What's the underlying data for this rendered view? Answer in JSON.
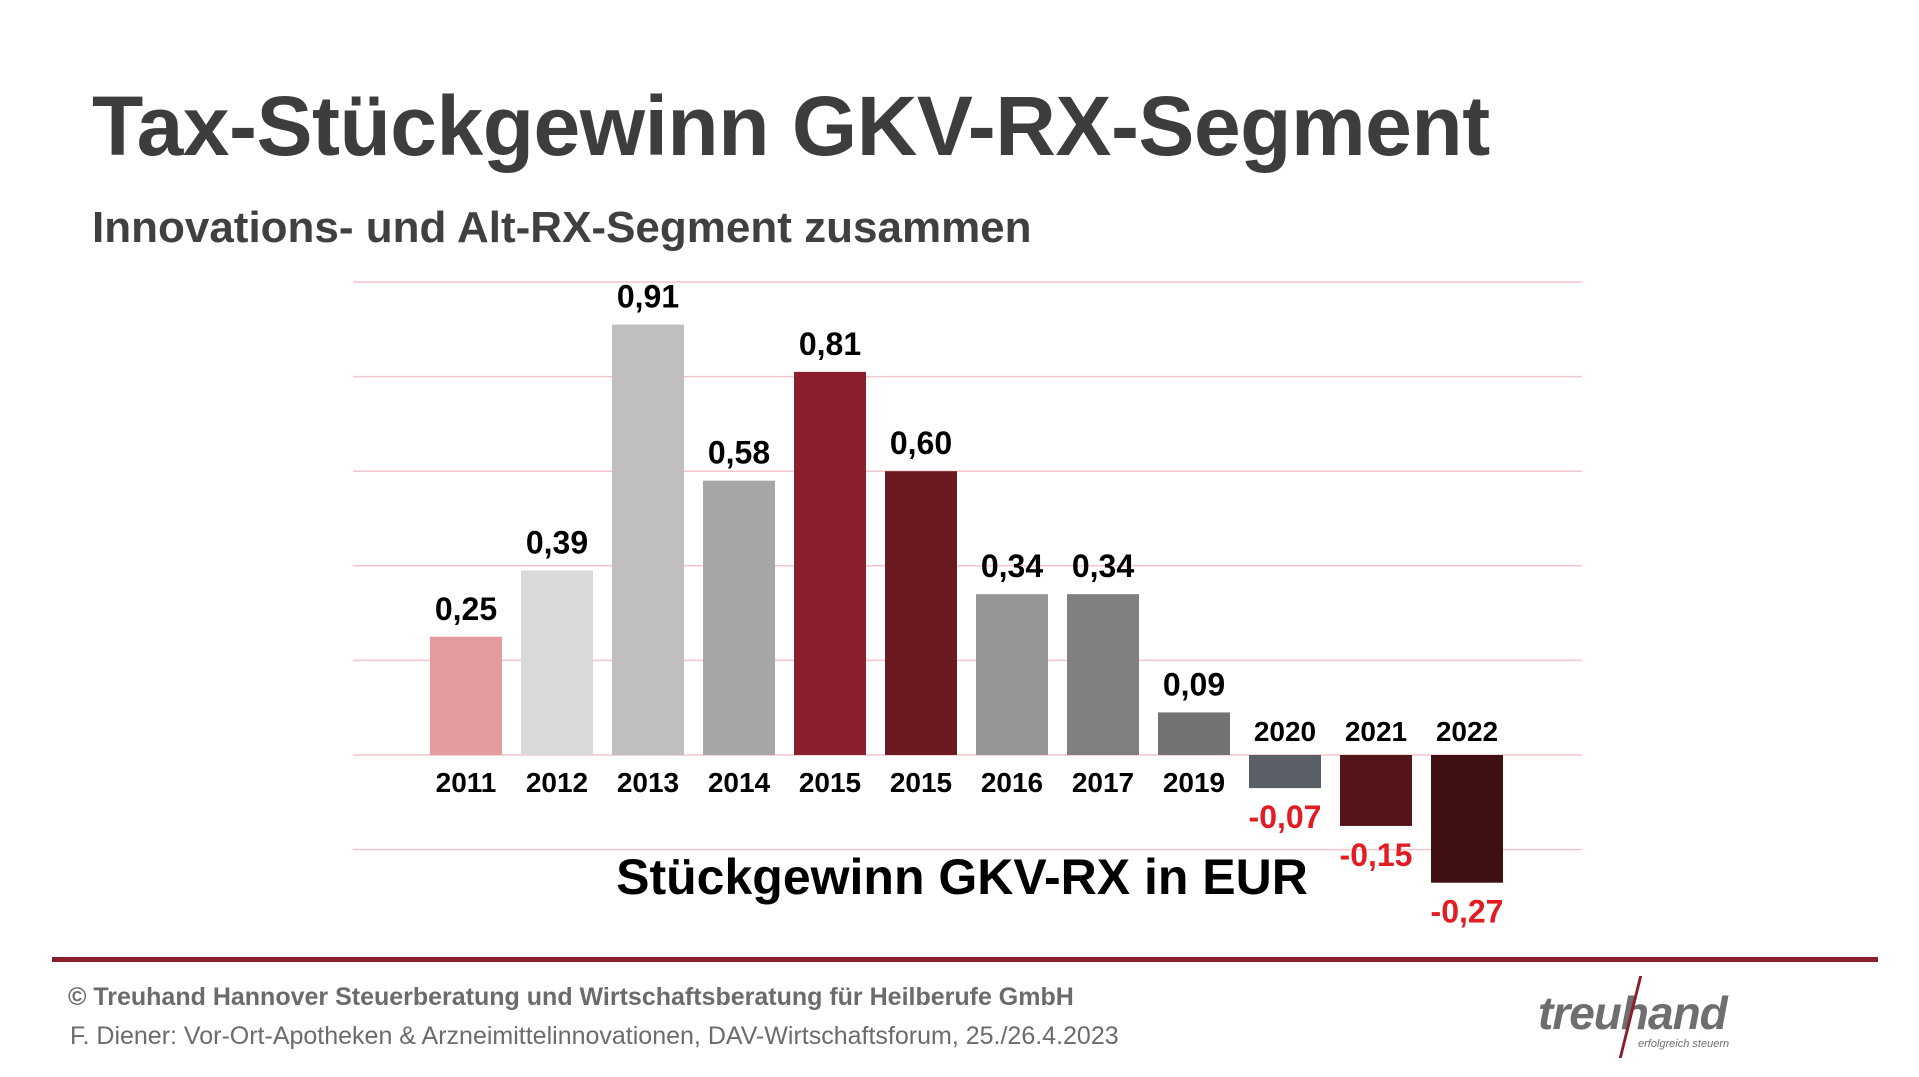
{
  "header": {
    "title": "Tax-Stückgewinn GKV-RX-Segment",
    "subtitle": "Innovations- und Alt-RX-Segment zusammen"
  },
  "chart_data": {
    "type": "bar",
    "title": "Stückgewinn GKV-RX in EUR",
    "ylim": [
      -0.2,
      1.0
    ],
    "grid": true,
    "categories": [
      "2011",
      "2012",
      "2013",
      "2014",
      "2015",
      "2015",
      "2016",
      "2017",
      "2019",
      "2020",
      "2021",
      "2022"
    ],
    "values": [
      0.25,
      0.39,
      0.91,
      0.58,
      0.81,
      0.6,
      0.34,
      0.34,
      0.09,
      -0.07,
      -0.15,
      -0.27
    ],
    "value_labels": [
      "0,25",
      "0,39",
      "0,91",
      "0,58",
      "0,81",
      "0,60",
      "0,34",
      "0,34",
      "0,09",
      "-0,07",
      "-0,15",
      "-0,27"
    ],
    "bar_colors": [
      "#e59a9f",
      "#d9d9d9",
      "#bfbfbf",
      "#a6a6a6",
      "#8b1f2d",
      "#6b1a21",
      "#969696",
      "#808080",
      "#737373",
      "#5a6066",
      "#541419",
      "#3f0f14"
    ],
    "negative_label_color": "#e31b23",
    "gridline_color": "#f2c6cc"
  },
  "footer": {
    "copyright": "© Treuhand Hannover Steuerberatung und Wirtschaftsberatung für Heilberufe GmbH",
    "credit": "F. Diener: Vor-Ort-Apotheken & Arzneimittelinnovationen, DAV-Wirtschaftsforum, 25./26.4.2023",
    "rule_color": "#8b1f2d"
  },
  "logo": {
    "word": "treuhand",
    "tagline": "erfolgreich steuern"
  }
}
